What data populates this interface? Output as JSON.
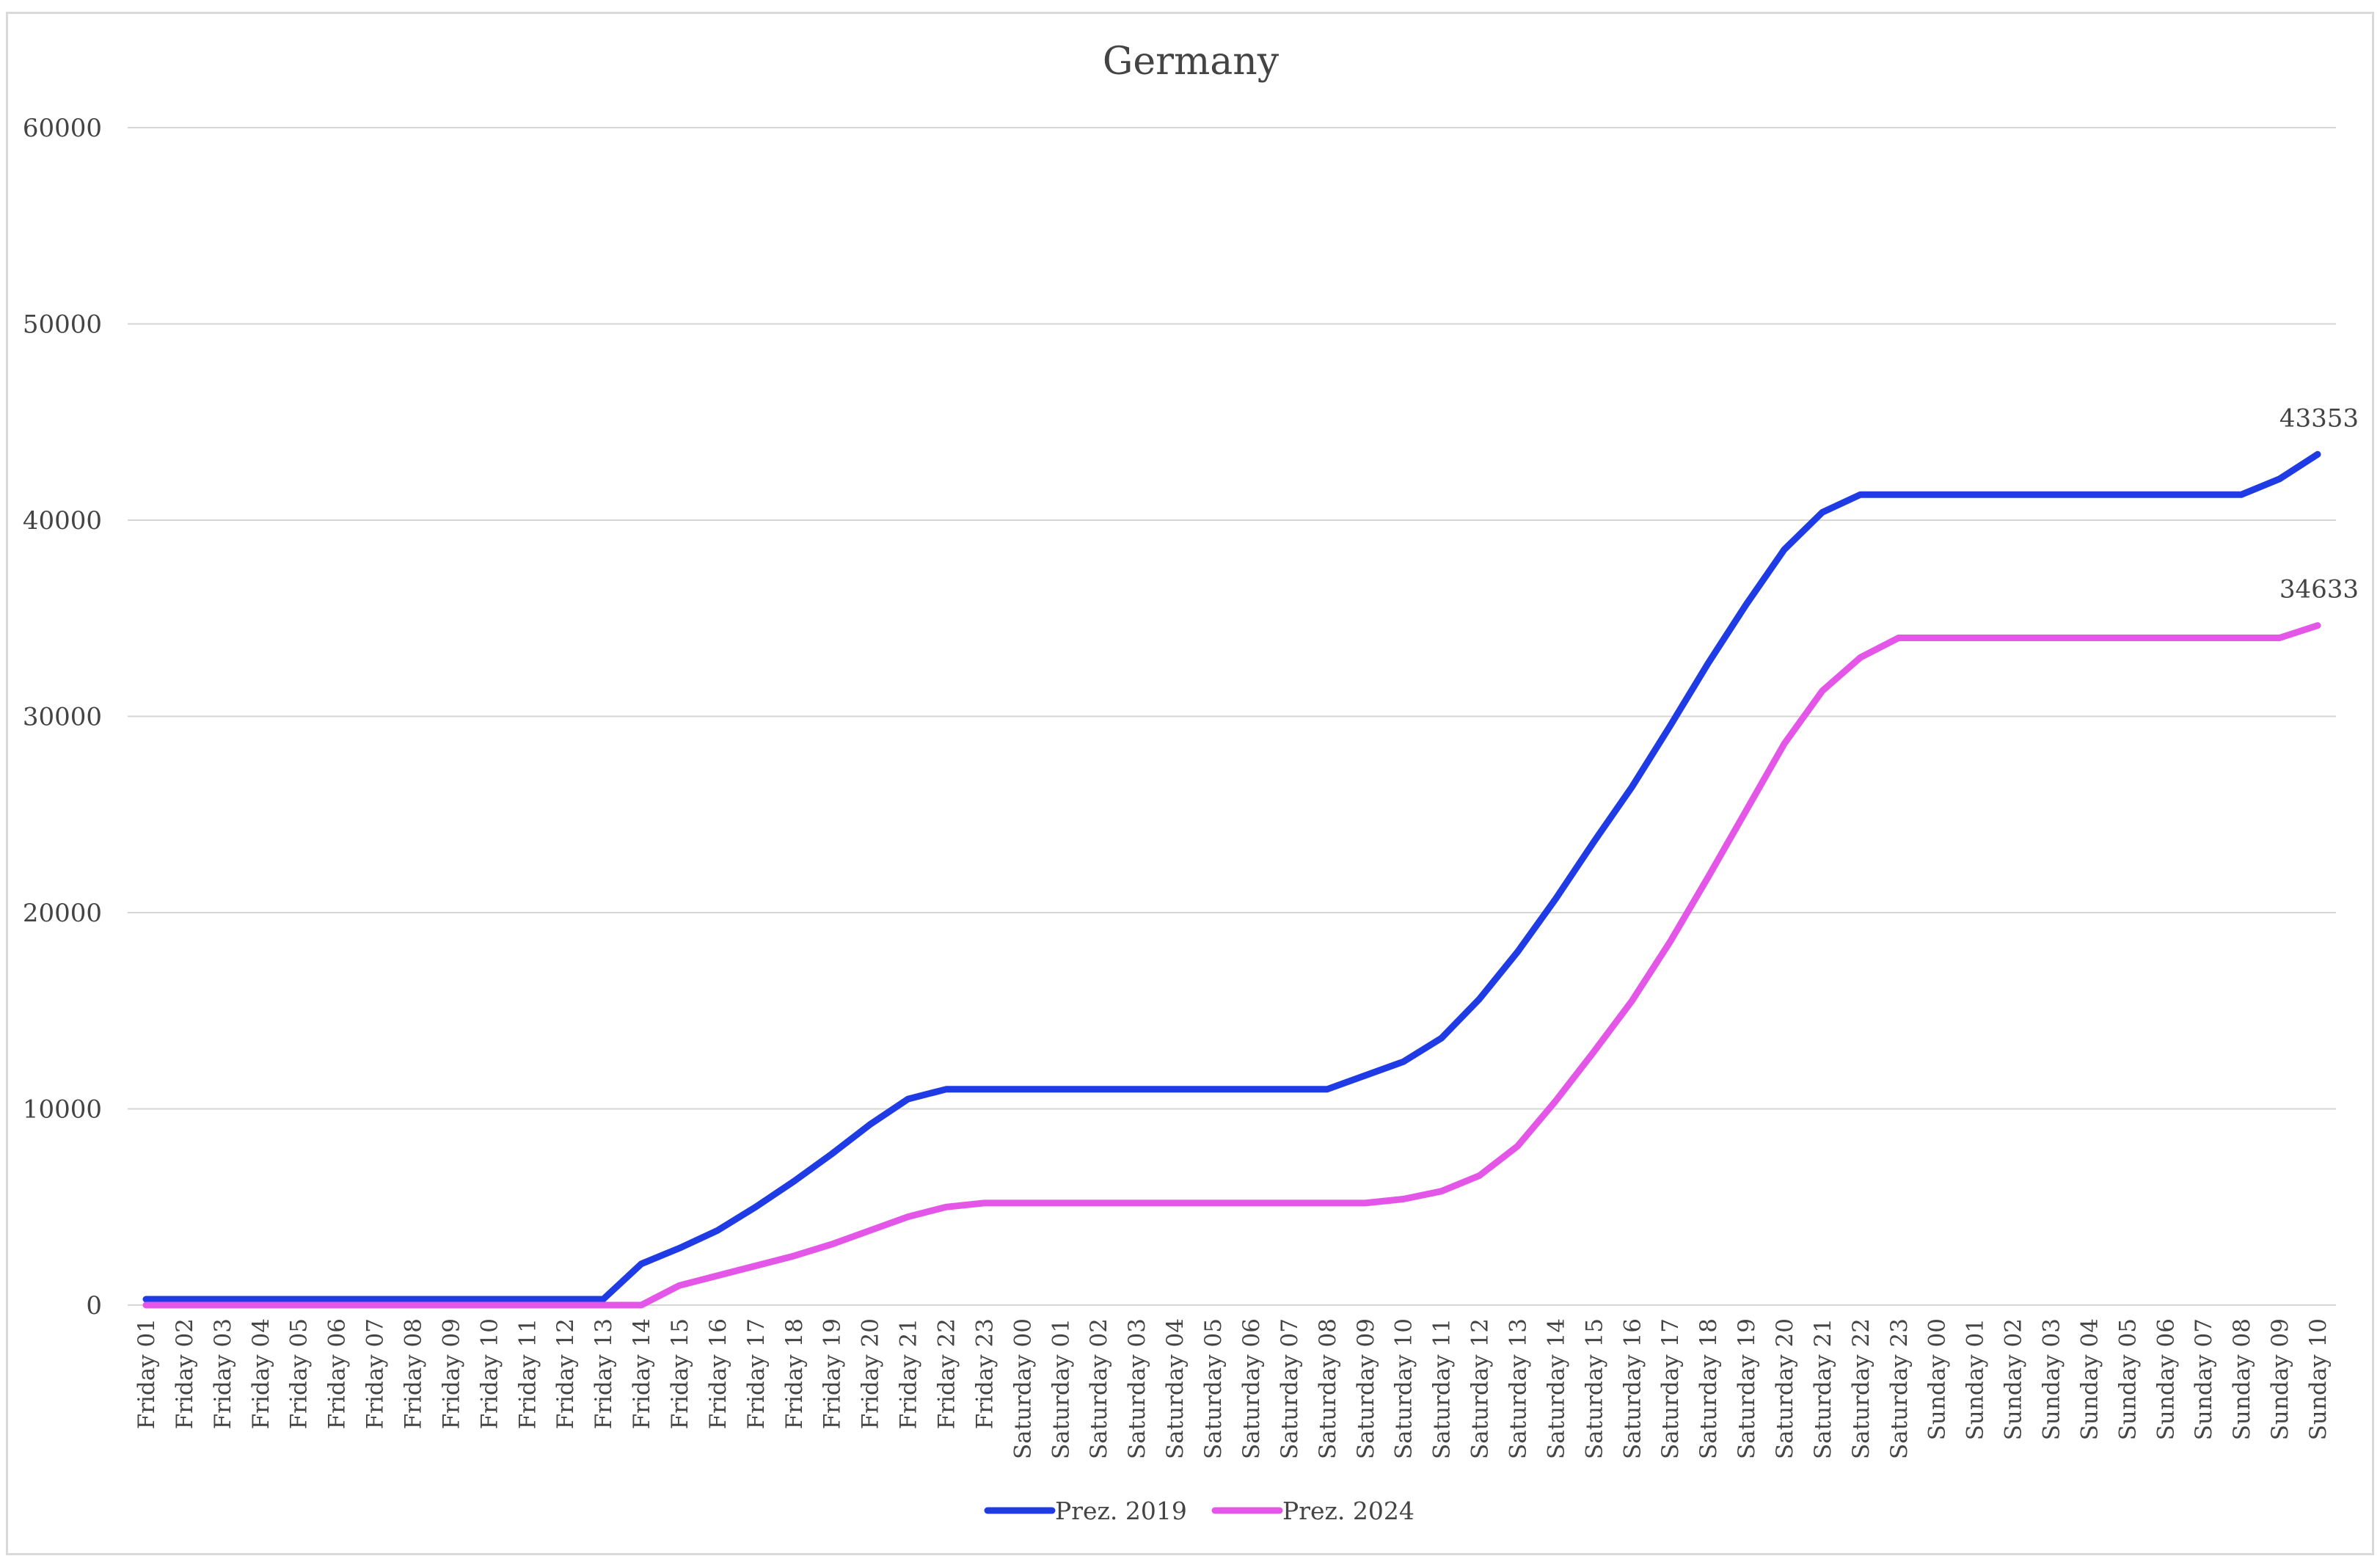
{
  "chart_data": {
    "type": "line",
    "title": "Germany",
    "xlabel": "",
    "ylabel": "",
    "ylim": [
      0,
      60000
    ],
    "yticks": [
      "0",
      "10000",
      "20000",
      "30000",
      "40000",
      "50000",
      "60000"
    ],
    "grid": true,
    "legend": "bottom",
    "categories": [
      "Friday 01",
      "Friday 02",
      "Friday 03",
      "Friday 04",
      "Friday 05",
      "Friday 06",
      "Friday 07",
      "Friday 08",
      "Friday 09",
      "Friday 10",
      "Friday 11",
      "Friday 12",
      "Friday 13",
      "Friday 14",
      "Friday 15",
      "Friday 16",
      "Friday 17",
      "Friday 18",
      "Friday 19",
      "Friday 20",
      "Friday 21",
      "Friday 22",
      "Friday 23",
      "Saturday 00",
      "Saturday 01",
      "Saturday 02",
      "Saturday 03",
      "Saturday 04",
      "Saturday 05",
      "Saturday 06",
      "Saturday 07",
      "Saturday 08",
      "Saturday 09",
      "Saturday 10",
      "Saturday 11",
      "Saturday 12",
      "Saturday 13",
      "Saturday 14",
      "Saturday 15",
      "Saturday 16",
      "Saturday 17",
      "Saturday 18",
      "Saturday 19",
      "Saturday 20",
      "Saturday 21",
      "Saturday 22",
      "Saturday 23",
      "Sunday 00",
      "Sunday 01",
      "Sunday 02",
      "Sunday 03",
      "Sunday 04",
      "Sunday 05",
      "Sunday 06",
      "Sunday 07",
      "Sunday 08",
      "Sunday 09",
      "Sunday 10"
    ],
    "series": [
      {
        "name": "Prez. 2019",
        "color": "#1f3be6",
        "end_label": "43353",
        "values": [
          300,
          300,
          300,
          300,
          300,
          300,
          300,
          300,
          300,
          300,
          300,
          300,
          300,
          2100,
          2900,
          3800,
          5000,
          6300,
          7700,
          9200,
          10500,
          11000,
          11000,
          11000,
          11000,
          11000,
          11000,
          11000,
          11000,
          11000,
          11000,
          11000,
          11700,
          12400,
          13600,
          15600,
          18000,
          20700,
          23600,
          26400,
          29500,
          32700,
          35700,
          38500,
          40400,
          41300,
          41300,
          41300,
          41300,
          41300,
          41300,
          41300,
          41300,
          41300,
          41300,
          41300,
          42100,
          43353
        ]
      },
      {
        "name": "Prez. 2024",
        "color": "#e356e8",
        "end_label": "34633",
        "values": [
          0,
          0,
          0,
          0,
          0,
          0,
          0,
          0,
          0,
          0,
          0,
          0,
          0,
          0,
          1000,
          1500,
          2000,
          2500,
          3100,
          3800,
          4500,
          5000,
          5200,
          5200,
          5200,
          5200,
          5200,
          5200,
          5200,
          5200,
          5200,
          5200,
          5200,
          5400,
          5800,
          6600,
          8100,
          10400,
          12900,
          15500,
          18500,
          21800,
          25200,
          28600,
          31300,
          33000,
          34000,
          34000,
          34000,
          34000,
          34000,
          34000,
          34000,
          34000,
          34000,
          34000,
          34000,
          34633
        ]
      }
    ]
  }
}
